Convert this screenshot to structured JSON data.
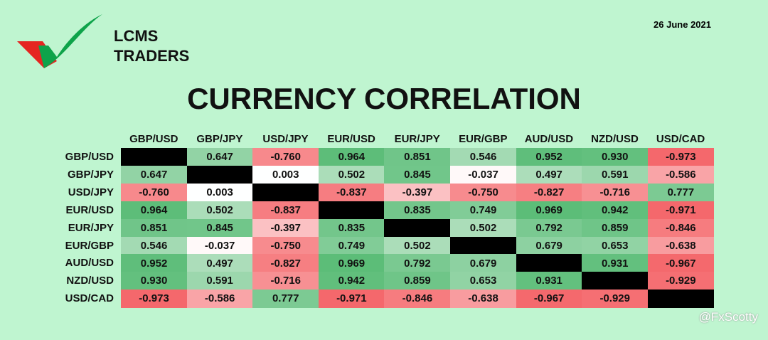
{
  "header": {
    "brand": [
      "LCMS",
      "TRADERS"
    ],
    "date": "26 June 2021"
  },
  "title": "CURRENCY CORRELATION",
  "table": {
    "columns": [
      "GBP/USD",
      "GBP/JPY",
      "USD/JPY",
      "EUR/USD",
      "EUR/JPY",
      "EUR/GBP",
      "AUD/USD",
      "NZD/USD",
      "USD/CAD"
    ],
    "rows": [
      {
        "label": "GBP/USD",
        "cells": [
          null,
          "0.647",
          "-0.760",
          "0.964",
          "0.851",
          "0.546",
          "0.952",
          "0.930",
          "-0.973"
        ]
      },
      {
        "label": "GBP/JPY",
        "cells": [
          "0.647",
          null,
          "0.003",
          "0.502",
          "0.845",
          "-0.037",
          "0.497",
          "0.591",
          "-0.586"
        ]
      },
      {
        "label": "USD/JPY",
        "cells": [
          "-0.760",
          "0.003",
          null,
          "-0.837",
          "-0.397",
          "-0.750",
          "-0.827",
          "-0.716",
          "0.777"
        ]
      },
      {
        "label": "EUR/USD",
        "cells": [
          "0.964",
          "0.502",
          "-0.837",
          null,
          "0.835",
          "0.749",
          "0.969",
          "0.942",
          "-0.971"
        ]
      },
      {
        "label": "EUR/JPY",
        "cells": [
          "0.851",
          "0.845",
          "-0.397",
          "0.835",
          null,
          "0.502",
          "0.792",
          "0.859",
          "-0.846"
        ]
      },
      {
        "label": "EUR/GBP",
        "cells": [
          "0.546",
          "-0.037",
          "-0.750",
          "0.749",
          "0.502",
          null,
          "0.679",
          "0.653",
          "-0.638"
        ]
      },
      {
        "label": "AUD/USD",
        "cells": [
          "0.952",
          "0.497",
          "-0.827",
          "0.969",
          "0.792",
          "0.679",
          null,
          "0.931",
          "-0.967"
        ]
      },
      {
        "label": "NZD/USD",
        "cells": [
          "0.930",
          "0.591",
          "-0.716",
          "0.942",
          "0.859",
          "0.653",
          "0.931",
          null,
          "-0.929"
        ]
      },
      {
        "label": "USD/CAD",
        "cells": [
          "-0.973",
          "-0.586",
          "0.777",
          "-0.971",
          "-0.846",
          "-0.638",
          "-0.967",
          "-0.929",
          null
        ]
      }
    ]
  },
  "watermark": "@FxScotty"
}
